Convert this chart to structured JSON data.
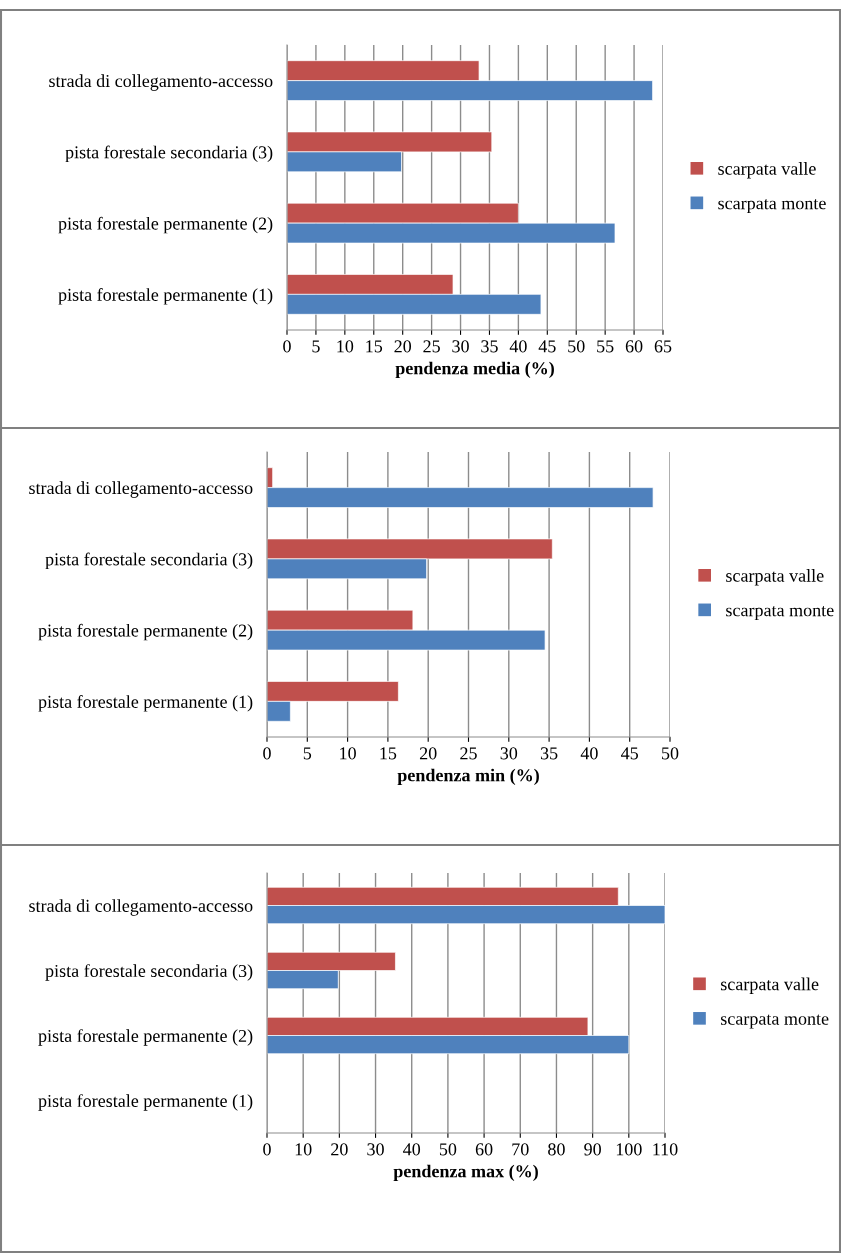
{
  "chart_data": [
    {
      "type": "bar",
      "orientation": "horizontal",
      "xlabel": "pendenza media (%)",
      "categories": [
        "strada di collegamento-accesso",
        "pista forestale secondaria (3)",
        "pista forestale permanente (2)",
        "pista forestale permanente (1)"
      ],
      "series": [
        {
          "name": "scarpata valle",
          "color": "#c0504d",
          "values": [
            33.2,
            35.4,
            40.0,
            28.7
          ]
        },
        {
          "name": "scarpata monte",
          "color": "#4f81bd",
          "values": [
            63.2,
            19.8,
            56.7,
            43.9
          ]
        }
      ],
      "xlim": [
        0,
        65
      ],
      "xticks": [
        0,
        5,
        10,
        15,
        20,
        25,
        30,
        35,
        40,
        45,
        50,
        55,
        60,
        65
      ],
      "grid": "x",
      "legend": "right"
    },
    {
      "type": "bar",
      "orientation": "horizontal",
      "xlabel": "pendenza min (%)",
      "categories": [
        "strada di collegamento-accesso",
        "pista forestale secondaria (3)",
        "pista forestale permanente (2)",
        "pista forestale permanente (1)"
      ],
      "series": [
        {
          "name": "scarpata valle",
          "color": "#c0504d",
          "values": [
            0.7,
            35.4,
            18.1,
            16.3
          ]
        },
        {
          "name": "scarpata monte",
          "color": "#4f81bd",
          "values": [
            47.9,
            19.8,
            34.5,
            2.9
          ]
        }
      ],
      "xlim": [
        0,
        50
      ],
      "xticks": [
        0,
        5,
        10,
        15,
        20,
        25,
        30,
        35,
        40,
        45,
        50
      ],
      "grid": "x",
      "legend": "right"
    },
    {
      "type": "bar",
      "orientation": "horizontal",
      "xlabel": "pendenza max (%)",
      "categories": [
        "strada di collegamento-accesso",
        "pista forestale secondaria (3)",
        "pista forestale permanente (2)",
        "pista forestale permanente (1)"
      ],
      "series": [
        {
          "name": "scarpata valle",
          "color": "#c0504d",
          "values": [
            97.1,
            35.5,
            88.7,
            null
          ]
        },
        {
          "name": "scarpata monte",
          "color": "#4f81bd",
          "values": [
            110,
            19.7,
            100,
            null
          ]
        }
      ],
      "xlim": [
        0,
        110
      ],
      "xticks": [
        0,
        10,
        20,
        30,
        40,
        50,
        60,
        70,
        80,
        90,
        100,
        110
      ],
      "grid": "x",
      "legend": "right"
    }
  ]
}
